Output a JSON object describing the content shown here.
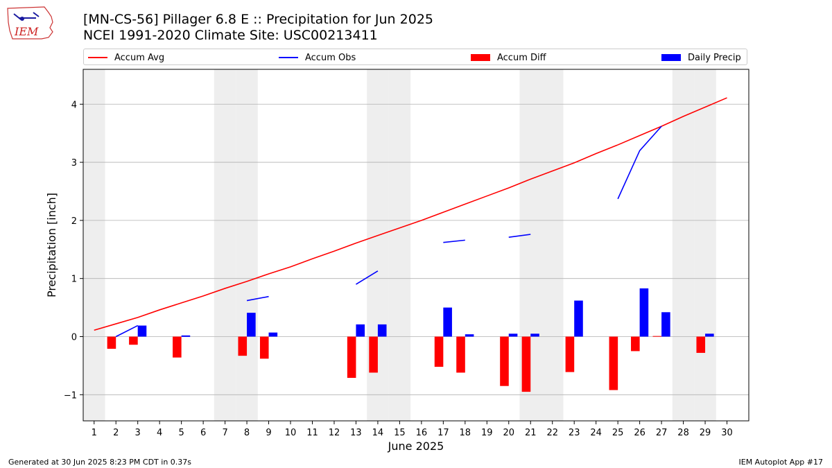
{
  "header": {
    "title_line1": "[MN-CS-56] Pillager 6.8 E :: Precipitation for Jun 2025",
    "title_line2": "NCEI 1991-2020 Climate Site: USC00213411",
    "logo_text": "IEM"
  },
  "footer": {
    "generated": "Generated at 30 Jun 2025 8:23 PM CDT in 0.37s",
    "app": "IEM Autoplot App #17"
  },
  "colors": {
    "accum_avg": "#ff0000",
    "accum_obs": "#0000ff",
    "accum_diff": "#ff0000",
    "daily_precip": "#0000ff",
    "weekend_shade": "#eeeeee",
    "grid": "#b0b0b0"
  },
  "chart_data": {
    "type": "bar",
    "xlabel": "June 2025",
    "ylabel": "Precipitation [inch]",
    "xlim": [
      0.5,
      31
    ],
    "ylim": [
      -1.45,
      4.6
    ],
    "yticks": [
      -1,
      0,
      1,
      2,
      3,
      4
    ],
    "ytick_labels": [
      "−1",
      "0",
      "1",
      "2",
      "3",
      "4"
    ],
    "grid": "horizontal",
    "legend_position": "top",
    "days": [
      1,
      2,
      3,
      4,
      5,
      6,
      7,
      8,
      9,
      10,
      11,
      12,
      13,
      14,
      15,
      16,
      17,
      18,
      19,
      20,
      21,
      22,
      23,
      24,
      25,
      26,
      27,
      28,
      29,
      30
    ],
    "weekend_days": [
      1,
      7,
      8,
      14,
      15,
      21,
      22,
      28,
      29
    ],
    "series": [
      {
        "name": "Accum Avg",
        "kind": "line",
        "values": [
          0.11,
          0.22,
          0.33,
          0.46,
          0.58,
          0.7,
          0.83,
          0.95,
          1.08,
          1.2,
          1.34,
          1.47,
          1.61,
          1.74,
          1.87,
          2.0,
          2.14,
          2.28,
          2.42,
          2.56,
          2.71,
          2.85,
          2.99,
          3.15,
          3.3,
          3.46,
          3.62,
          3.79,
          3.95,
          4.11
        ]
      },
      {
        "name": "Accum Obs",
        "kind": "line",
        "values": [
          null,
          0.0,
          0.19,
          null,
          null,
          null,
          null,
          0.62,
          0.69,
          null,
          null,
          null,
          0.9,
          1.13,
          null,
          null,
          1.62,
          1.66,
          null,
          1.71,
          1.76,
          null,
          null,
          null,
          2.37,
          3.2,
          3.62,
          null,
          null,
          null
        ]
      },
      {
        "name": "Accum Diff",
        "kind": "bar",
        "values": [
          0,
          -0.21,
          -0.14,
          0,
          -0.36,
          0,
          0,
          -0.33,
          -0.38,
          0,
          0,
          0,
          -0.71,
          -0.62,
          0,
          0,
          -0.52,
          -0.62,
          0,
          -0.85,
          -0.95,
          0,
          -0.61,
          0,
          -0.92,
          -0.25,
          0.01,
          0,
          -0.28,
          0
        ]
      },
      {
        "name": "Daily Precip",
        "kind": "bar",
        "values": [
          0,
          0,
          0.19,
          0,
          0.02,
          0,
          0,
          0.41,
          0.07,
          0,
          0,
          0,
          0.21,
          0.21,
          0,
          0,
          0.5,
          0.04,
          0,
          0.05,
          0.05,
          0,
          0.62,
          0,
          0,
          0.83,
          0.42,
          0,
          0.05,
          0
        ]
      }
    ]
  }
}
